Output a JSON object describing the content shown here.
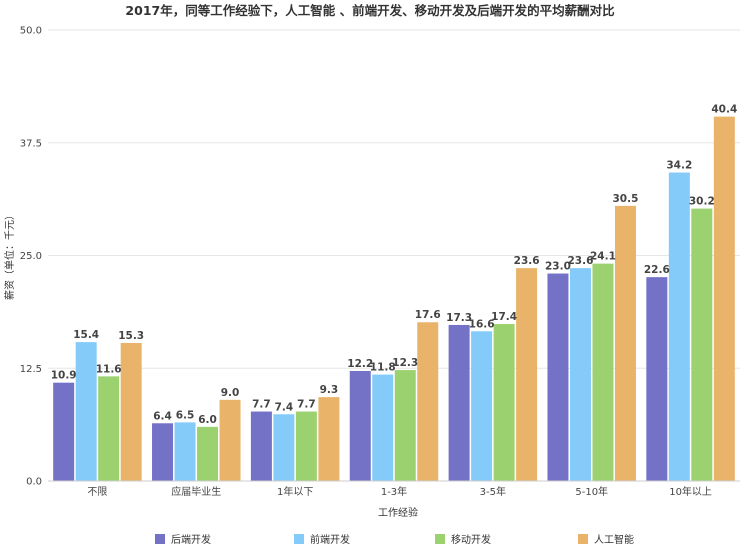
{
  "chart_data": {
    "type": "bar",
    "title": "2017年，同等工作经验下，人工智能 、前端开发、移动开发及后端开发的平均薪酬对比",
    "xlabel": "工作经验",
    "ylabel": "薪资（单位：千元）",
    "ylim": [
      0,
      50
    ],
    "yticks": [
      "0.0",
      "12.5",
      "25.0",
      "37.5",
      "50.0"
    ],
    "grid": true,
    "legend_position": "bottom",
    "categories": [
      "不限",
      "应届毕业生",
      "1年以下",
      "1-3年",
      "3-5年",
      "5-10年",
      "10年以上"
    ],
    "series": [
      {
        "name": "后端开发",
        "color": "#7472c7",
        "values": [
          10.9,
          6.4,
          7.7,
          12.2,
          17.3,
          23.0,
          22.6
        ]
      },
      {
        "name": "前端开发",
        "color": "#85cbfa",
        "values": [
          15.4,
          6.5,
          7.4,
          11.8,
          16.6,
          23.6,
          34.2
        ]
      },
      {
        "name": "移动开发",
        "color": "#9bd26f",
        "values": [
          11.6,
          6.0,
          7.7,
          12.3,
          17.4,
          24.1,
          30.2
        ]
      },
      {
        "name": "人工智能",
        "color": "#e9b36a",
        "values": [
          15.3,
          9.0,
          9.3,
          17.6,
          23.6,
          30.5,
          40.4
        ]
      }
    ]
  }
}
